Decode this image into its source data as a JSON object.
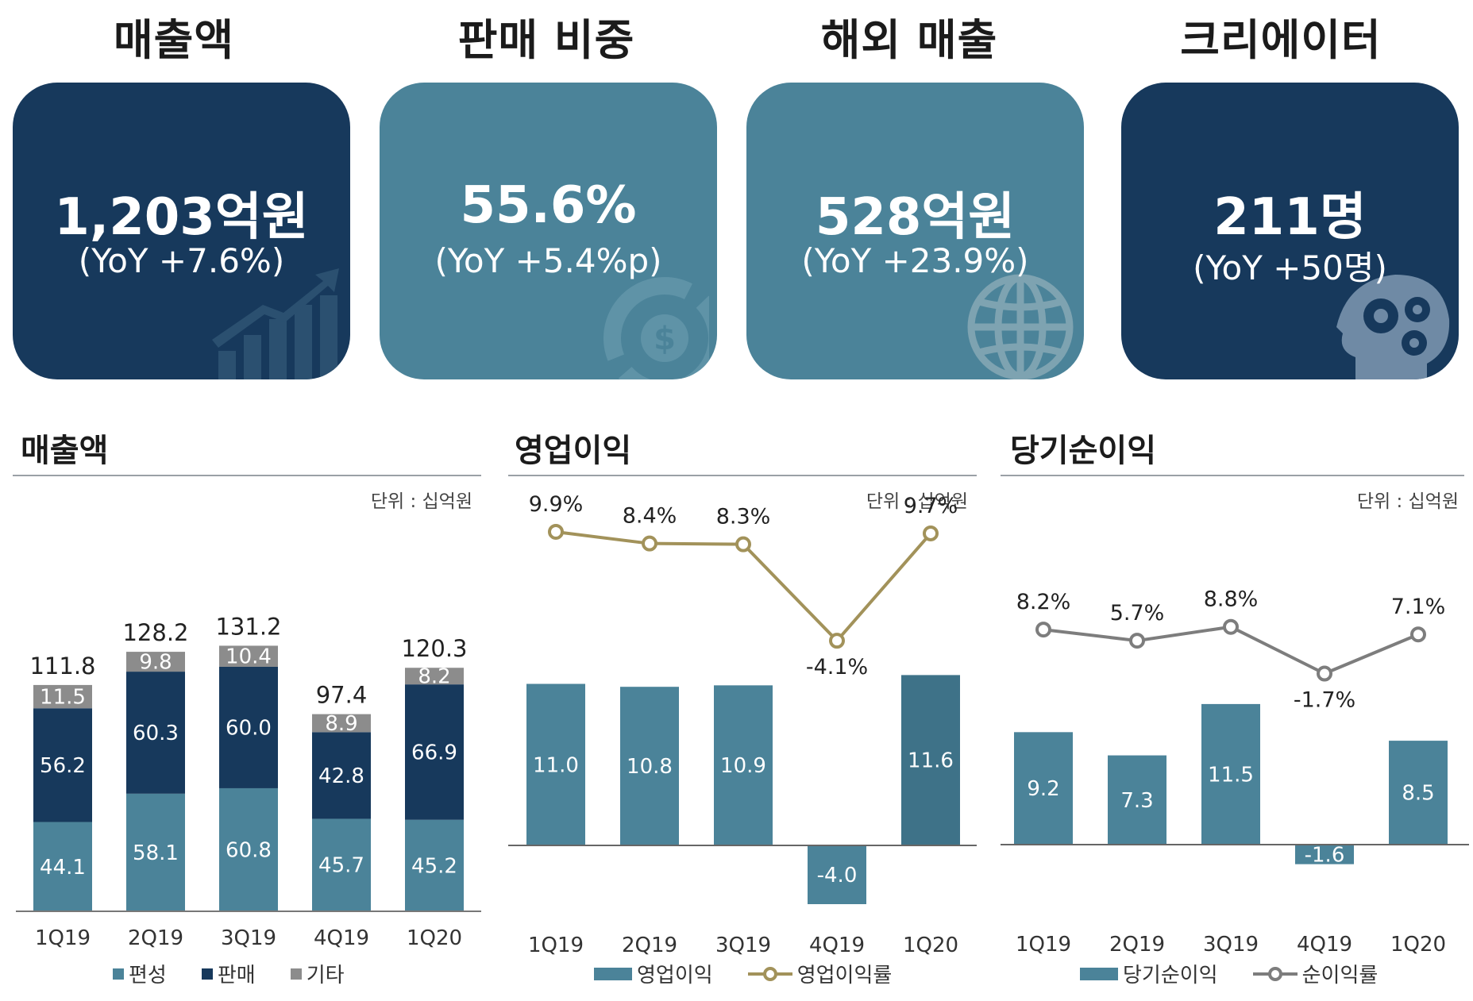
{
  "kpis": [
    {
      "title": "매출액",
      "value": "1,203억원",
      "sub": "(YoY +7.6%)",
      "style": "dark",
      "icon": "growth-chart-icon"
    },
    {
      "title": "판매 비중",
      "value": "55.6%",
      "sub": "(YoY +5.4%p)",
      "style": "teal",
      "icon": "dollar-coin-icon"
    },
    {
      "title": "해외 매출",
      "value": "528억원",
      "sub": "(YoY +23.9%)",
      "style": "teal",
      "icon": "globe-icon"
    },
    {
      "title": "크리에이터",
      "value": "211명",
      "sub": "(YoY +50명)",
      "style": "dark",
      "icon": "head-gears-icon"
    }
  ],
  "sections": {
    "revenue": {
      "title": "매출액",
      "unit": "단위 : 십억원"
    },
    "operating": {
      "title": "영업이익",
      "unit": "단위 : 십억원"
    },
    "net": {
      "title": "당기순이익",
      "unit": "단위 : 십억원"
    }
  },
  "colors": {
    "dark": "#17395c",
    "teal": "#4b8399",
    "gray": "#8c8c8c",
    "gold": "#a2925a",
    "linegray": "#7d7d7d"
  },
  "chart_data": [
    {
      "type": "bar",
      "stacked": true,
      "title": "매출액",
      "unit": "단위 : 십억원",
      "categories": [
        "1Q19",
        "2Q19",
        "3Q19",
        "4Q19",
        "1Q20"
      ],
      "series": [
        {
          "name": "편성",
          "values": [
            44.1,
            58.1,
            60.8,
            45.7,
            45.2
          ],
          "color": "#4b8399"
        },
        {
          "name": "판매",
          "values": [
            56.2,
            60.3,
            60.0,
            42.8,
            66.9
          ],
          "color": "#17395c"
        },
        {
          "name": "기타",
          "values": [
            11.5,
            9.8,
            10.4,
            8.9,
            8.2
          ],
          "color": "#8c8c8c"
        }
      ],
      "totals": [
        111.8,
        128.2,
        131.2,
        97.4,
        120.3
      ],
      "totals_labels": [
        "111.8",
        "128.2",
        "131.2",
        "97.4",
        "120.3"
      ],
      "value_labels": [
        [
          "44.1",
          "58.1",
          "60.8",
          "45.7",
          "45.2"
        ],
        [
          "56.2",
          "60.3",
          "60.0",
          "42.8",
          "66.9"
        ],
        [
          "11.5",
          "9.8",
          "10.4",
          "8.9",
          "8.2"
        ]
      ],
      "ylim": [
        0,
        140
      ]
    },
    {
      "type": "bar+line",
      "title": "영업이익",
      "unit": "단위 : 십억원",
      "categories": [
        "1Q19",
        "2Q19",
        "3Q19",
        "4Q19",
        "1Q20"
      ],
      "bar_series": {
        "name": "영업이익",
        "values": [
          11.0,
          10.8,
          10.9,
          -4.0,
          11.6
        ],
        "labels": [
          "11.0",
          "10.8",
          "10.9",
          "-4.0",
          "11.6"
        ],
        "color": "#4b8399"
      },
      "line_series": {
        "name": "영업이익률",
        "values": [
          9.9,
          8.4,
          8.3,
          -4.1,
          9.7
        ],
        "labels": [
          "9.9%",
          "8.4%",
          "8.3%",
          "-4.1%",
          "9.7%"
        ],
        "color": "#a2925a"
      }
    },
    {
      "type": "bar+line",
      "title": "당기순이익",
      "unit": "단위 : 십억원",
      "categories": [
        "1Q19",
        "2Q19",
        "3Q19",
        "4Q19",
        "1Q20"
      ],
      "bar_series": {
        "name": "당기순이익",
        "values": [
          9.2,
          7.3,
          11.5,
          -1.6,
          8.5
        ],
        "labels": [
          "9.2",
          "7.3",
          "11.5",
          "-1.6",
          "8.5"
        ],
        "color": "#4b8399"
      },
      "line_series": {
        "name": "순이익률",
        "values": [
          8.2,
          5.7,
          8.8,
          -1.7,
          7.1
        ],
        "labels": [
          "8.2%",
          "5.7%",
          "8.8%",
          "-1.7%",
          "7.1%"
        ],
        "color": "#7d7d7d"
      }
    }
  ]
}
